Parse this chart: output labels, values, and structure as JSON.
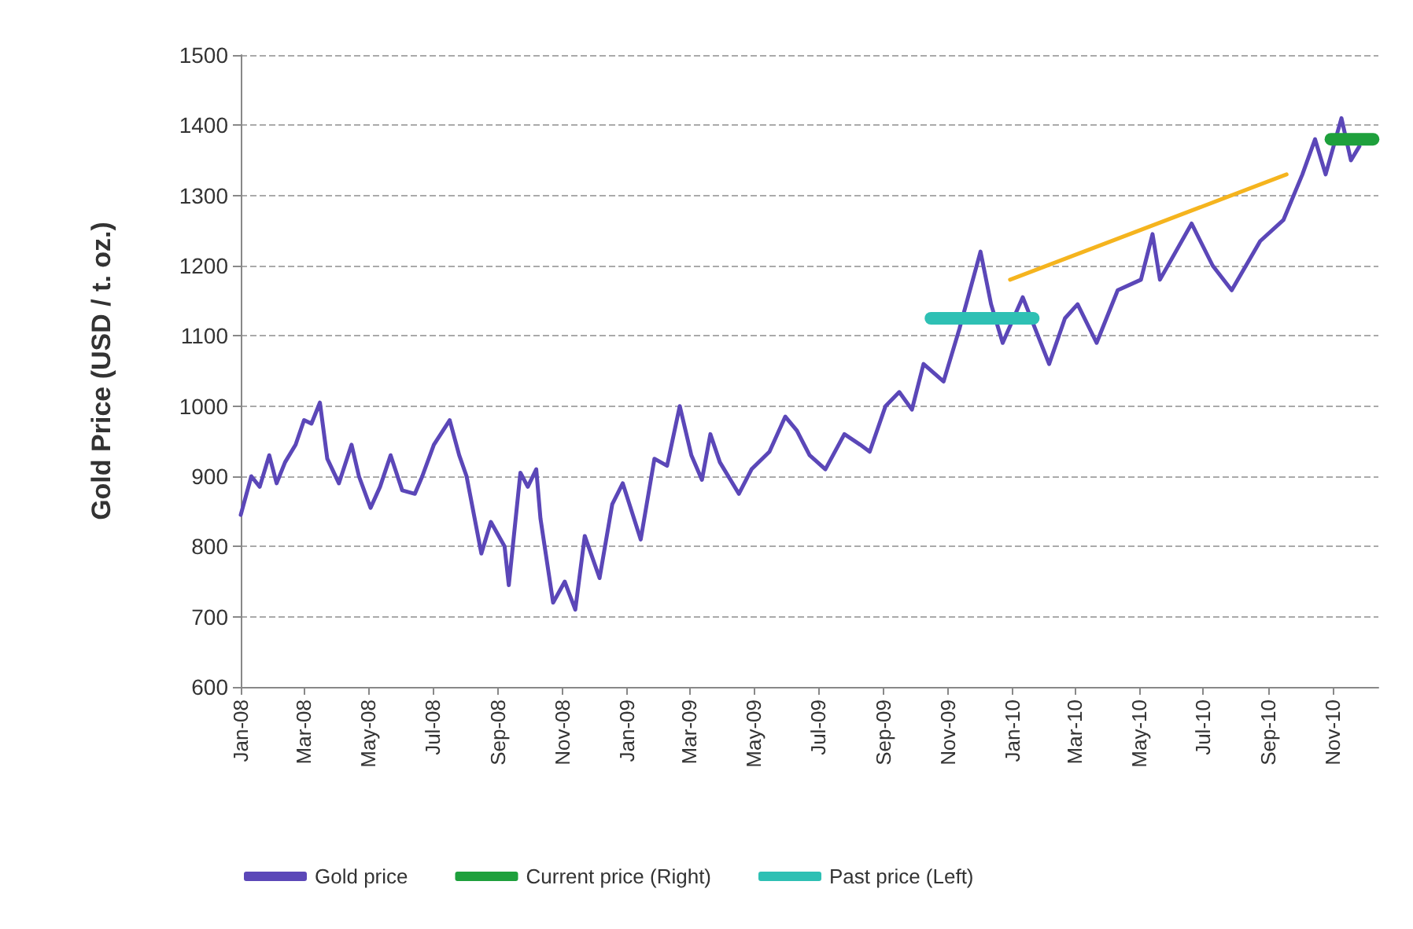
{
  "chart_data": {
    "type": "line",
    "ylabel": "Gold Price (USD / t. oz.)",
    "xlim": [
      "2008-01-01",
      "2010-12-14"
    ],
    "ylim": [
      600,
      1500
    ],
    "yticks": [
      600,
      700,
      800,
      900,
      1000,
      1100,
      1200,
      1300,
      1400,
      1500
    ],
    "xticks": [
      {
        "value": "2008-01-01",
        "label": "Jan-08"
      },
      {
        "value": "2008-03-01",
        "label": "Mar-08"
      },
      {
        "value": "2008-05-01",
        "label": "May-08"
      },
      {
        "value": "2008-07-01",
        "label": "Jul-08"
      },
      {
        "value": "2008-09-01",
        "label": "Sep-08"
      },
      {
        "value": "2008-11-01",
        "label": "Nov-08"
      },
      {
        "value": "2009-01-01",
        "label": "Jan-09"
      },
      {
        "value": "2009-03-01",
        "label": "Mar-09"
      },
      {
        "value": "2009-05-01",
        "label": "May-09"
      },
      {
        "value": "2009-07-01",
        "label": "Jul-09"
      },
      {
        "value": "2009-09-01",
        "label": "Sep-09"
      },
      {
        "value": "2009-11-01",
        "label": "Nov-09"
      },
      {
        "value": "2010-01-01",
        "label": "Jan-10"
      },
      {
        "value": "2010-03-01",
        "label": "Mar-10"
      },
      {
        "value": "2010-05-01",
        "label": "May-10"
      },
      {
        "value": "2010-07-01",
        "label": "Jul-10"
      },
      {
        "value": "2010-09-01",
        "label": "Sep-10"
      },
      {
        "value": "2010-11-01",
        "label": "Nov-10"
      }
    ],
    "grid": "y",
    "legend": "bottom",
    "marker": "none",
    "series": [
      {
        "name": "Gold price",
        "color": "#5b47b8",
        "x": [
          "2008-01-01",
          "2008-01-11",
          "2008-01-19",
          "2008-01-28",
          "2008-02-04",
          "2008-02-12",
          "2008-02-22",
          "2008-03-01",
          "2008-03-08",
          "2008-03-16",
          "2008-03-23",
          "2008-04-03",
          "2008-04-15",
          "2008-04-22",
          "2008-05-03",
          "2008-05-12",
          "2008-05-22",
          "2008-06-02",
          "2008-06-14",
          "2008-06-21",
          "2008-07-02",
          "2008-07-17",
          "2008-07-26",
          "2008-08-02",
          "2008-08-16",
          "2008-08-25",
          "2008-09-07",
          "2008-09-11",
          "2008-09-22",
          "2008-09-29",
          "2008-10-07",
          "2008-10-11",
          "2008-10-23",
          "2008-11-03",
          "2008-11-13",
          "2008-11-22",
          "2008-12-06",
          "2008-12-18",
          "2008-12-28",
          "2009-01-14",
          "2009-01-27",
          "2009-02-08",
          "2009-02-20",
          "2009-03-03",
          "2009-03-13",
          "2009-03-21",
          "2009-03-30",
          "2009-04-17",
          "2009-04-29",
          "2009-05-16",
          "2009-05-31",
          "2009-06-11",
          "2009-06-23",
          "2009-07-08",
          "2009-07-26",
          "2009-08-10",
          "2009-08-19",
          "2009-09-03",
          "2009-09-16",
          "2009-09-28",
          "2009-10-09",
          "2009-10-28",
          "2009-11-12",
          "2009-12-02",
          "2009-12-12",
          "2009-12-23",
          "2010-01-11",
          "2010-02-05",
          "2010-02-20",
          "2010-03-04",
          "2010-03-22",
          "2010-04-11",
          "2010-05-03",
          "2010-05-14",
          "2010-05-21",
          "2010-06-20",
          "2010-07-10",
          "2010-07-28",
          "2010-08-24",
          "2010-09-15",
          "2010-10-03",
          "2010-10-15",
          "2010-10-25",
          "2010-11-09",
          "2010-11-18",
          "2010-11-26"
        ],
        "values": [
          845,
          900,
          885,
          930,
          890,
          920,
          945,
          980,
          975,
          1005,
          925,
          890,
          945,
          900,
          855,
          885,
          930,
          880,
          875,
          900,
          945,
          980,
          930,
          900,
          790,
          835,
          800,
          745,
          905,
          885,
          910,
          840,
          720,
          750,
          710,
          815,
          755,
          860,
          890,
          810,
          925,
          915,
          1000,
          930,
          895,
          960,
          920,
          875,
          910,
          935,
          985,
          965,
          930,
          910,
          960,
          945,
          935,
          1000,
          1020,
          995,
          1060,
          1035,
          1110,
          1220,
          1145,
          1090,
          1155,
          1060,
          1125,
          1145,
          1090,
          1165,
          1180,
          1245,
          1180,
          1260,
          1200,
          1165,
          1235,
          1265,
          1330,
          1380,
          1330,
          1410,
          1350,
          1370
        ]
      },
      {
        "name": "Current price (Right)",
        "color": "#1ea03c",
        "x": [
          "2010-10-30",
          "2010-12-09"
        ],
        "values": [
          1380,
          1380
        ]
      },
      {
        "name": "Past price (Left)",
        "color": "#2ec0b4",
        "x": [
          "2009-10-16",
          "2010-01-21"
        ],
        "values": [
          1125,
          1125
        ]
      },
      {
        "color": "#f5b41e",
        "x": [
          "2009-12-30",
          "2010-09-18"
        ],
        "values": [
          1180,
          1330
        ]
      }
    ]
  }
}
